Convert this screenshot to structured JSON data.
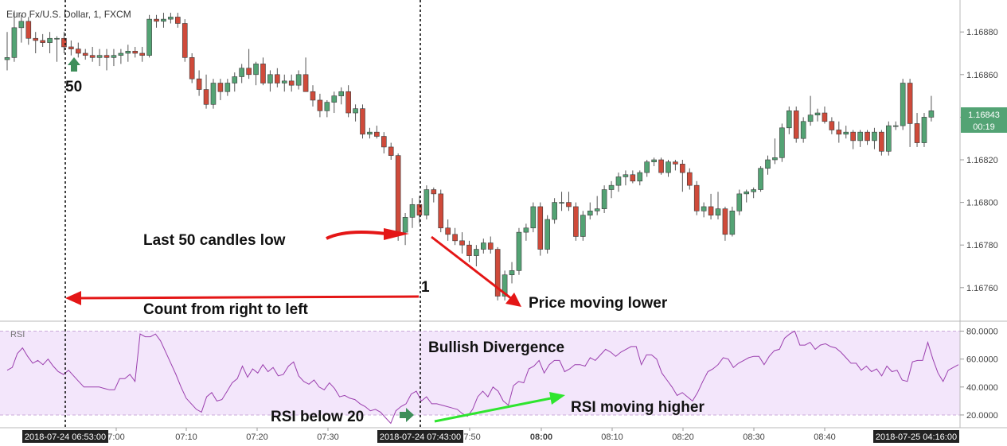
{
  "chart_data": [
    {
      "type": "candlestick",
      "title": "Euro Fx/U.S. Dollar, 1, FXCM",
      "ylim": [
        1.16745,
        1.16895
      ],
      "y_ticks": [
        "1.16880",
        "1.16860",
        "1.16840",
        "1.16820",
        "1.16800",
        "1.16780",
        "1.16760"
      ],
      "last_price": "1.16843",
      "countdown": "00:19",
      "colors": {
        "up": "#53a374",
        "down": "#cf4a3a",
        "wick": "#555555"
      },
      "candles": [
        {
          "o": 1.16867,
          "h": 1.1688,
          "l": 1.16862,
          "c": 1.16868
        },
        {
          "o": 1.16868,
          "h": 1.1689,
          "l": 1.16866,
          "c": 1.16882
        },
        {
          "o": 1.16882,
          "h": 1.16888,
          "l": 1.16875,
          "c": 1.16885
        },
        {
          "o": 1.16885,
          "h": 1.16887,
          "l": 1.16874,
          "c": 1.16877
        },
        {
          "o": 1.16877,
          "h": 1.1688,
          "l": 1.1687,
          "c": 1.16876
        },
        {
          "o": 1.16876,
          "h": 1.16879,
          "l": 1.16873,
          "c": 1.16875
        },
        {
          "o": 1.16875,
          "h": 1.1688,
          "l": 1.1687,
          "c": 1.16877
        },
        {
          "o": 1.16877,
          "h": 1.16878,
          "l": 1.16866,
          "c": 1.16877
        },
        {
          "o": 1.16877,
          "h": 1.1688,
          "l": 1.1687,
          "c": 1.16873
        },
        {
          "o": 1.16873,
          "h": 1.16876,
          "l": 1.16869,
          "c": 1.16872
        },
        {
          "o": 1.16872,
          "h": 1.16875,
          "l": 1.16868,
          "c": 1.1687
        },
        {
          "o": 1.1687,
          "h": 1.16872,
          "l": 1.16867,
          "c": 1.16869
        },
        {
          "o": 1.16869,
          "h": 1.16873,
          "l": 1.16866,
          "c": 1.16868
        },
        {
          "o": 1.16868,
          "h": 1.16872,
          "l": 1.16864,
          "c": 1.16869
        },
        {
          "o": 1.16869,
          "h": 1.16872,
          "l": 1.16862,
          "c": 1.16868
        },
        {
          "o": 1.16868,
          "h": 1.16872,
          "l": 1.16864,
          "c": 1.16869
        },
        {
          "o": 1.16869,
          "h": 1.16872,
          "l": 1.16865,
          "c": 1.1687
        },
        {
          "o": 1.1687,
          "h": 1.16874,
          "l": 1.16866,
          "c": 1.16871
        },
        {
          "o": 1.16871,
          "h": 1.16873,
          "l": 1.16868,
          "c": 1.1687
        },
        {
          "o": 1.1687,
          "h": 1.16873,
          "l": 1.16866,
          "c": 1.16869
        },
        {
          "o": 1.16869,
          "h": 1.16888,
          "l": 1.16868,
          "c": 1.16886
        },
        {
          "o": 1.16886,
          "h": 1.16888,
          "l": 1.16882,
          "c": 1.16885
        },
        {
          "o": 1.16885,
          "h": 1.16889,
          "l": 1.16882,
          "c": 1.16886
        },
        {
          "o": 1.16886,
          "h": 1.16889,
          "l": 1.16884,
          "c": 1.16887
        },
        {
          "o": 1.16887,
          "h": 1.16889,
          "l": 1.16882,
          "c": 1.16884
        },
        {
          "o": 1.16884,
          "h": 1.16886,
          "l": 1.16866,
          "c": 1.16868
        },
        {
          "o": 1.16868,
          "h": 1.1687,
          "l": 1.16856,
          "c": 1.16858
        },
        {
          "o": 1.16858,
          "h": 1.16862,
          "l": 1.1685,
          "c": 1.16853
        },
        {
          "o": 1.16853,
          "h": 1.1686,
          "l": 1.16844,
          "c": 1.16846
        },
        {
          "o": 1.16846,
          "h": 1.16858,
          "l": 1.16844,
          "c": 1.16856
        },
        {
          "o": 1.16856,
          "h": 1.16858,
          "l": 1.16848,
          "c": 1.16852
        },
        {
          "o": 1.16852,
          "h": 1.16858,
          "l": 1.1685,
          "c": 1.16856
        },
        {
          "o": 1.16856,
          "h": 1.16861,
          "l": 1.16852,
          "c": 1.16859
        },
        {
          "o": 1.16859,
          "h": 1.16865,
          "l": 1.16856,
          "c": 1.16863
        },
        {
          "o": 1.16863,
          "h": 1.16872,
          "l": 1.16858,
          "c": 1.1686
        },
        {
          "o": 1.1686,
          "h": 1.16866,
          "l": 1.16855,
          "c": 1.16865
        },
        {
          "o": 1.16865,
          "h": 1.16868,
          "l": 1.16855,
          "c": 1.16856
        },
        {
          "o": 1.16856,
          "h": 1.16862,
          "l": 1.16852,
          "c": 1.1686
        },
        {
          "o": 1.1686,
          "h": 1.16863,
          "l": 1.16854,
          "c": 1.16856
        },
        {
          "o": 1.16856,
          "h": 1.1686,
          "l": 1.16852,
          "c": 1.16857
        },
        {
          "o": 1.16857,
          "h": 1.1686,
          "l": 1.16852,
          "c": 1.16855
        },
        {
          "o": 1.16855,
          "h": 1.16862,
          "l": 1.16853,
          "c": 1.1686
        },
        {
          "o": 1.1686,
          "h": 1.16868,
          "l": 1.16852,
          "c": 1.16852
        },
        {
          "o": 1.16852,
          "h": 1.16855,
          "l": 1.16845,
          "c": 1.16848
        },
        {
          "o": 1.16848,
          "h": 1.16851,
          "l": 1.1684,
          "c": 1.16843
        },
        {
          "o": 1.16843,
          "h": 1.16848,
          "l": 1.1684,
          "c": 1.16847
        },
        {
          "o": 1.16847,
          "h": 1.16852,
          "l": 1.16842,
          "c": 1.1685
        },
        {
          "o": 1.1685,
          "h": 1.16854,
          "l": 1.16846,
          "c": 1.16852
        },
        {
          "o": 1.16852,
          "h": 1.16855,
          "l": 1.1684,
          "c": 1.16842
        },
        {
          "o": 1.16842,
          "h": 1.16846,
          "l": 1.16838,
          "c": 1.16844
        },
        {
          "o": 1.16844,
          "h": 1.16846,
          "l": 1.1683,
          "c": 1.16832
        },
        {
          "o": 1.16832,
          "h": 1.16835,
          "l": 1.1683,
          "c": 1.16833
        },
        {
          "o": 1.16833,
          "h": 1.16836,
          "l": 1.1683,
          "c": 1.16831
        },
        {
          "o": 1.16831,
          "h": 1.16833,
          "l": 1.16823,
          "c": 1.16826
        },
        {
          "o": 1.16826,
          "h": 1.16828,
          "l": 1.1682,
          "c": 1.16822
        },
        {
          "o": 1.16822,
          "h": 1.16823,
          "l": 1.16782,
          "c": 1.16786
        },
        {
          "o": 1.16786,
          "h": 1.16795,
          "l": 1.1678,
          "c": 1.16793
        },
        {
          "o": 1.16793,
          "h": 1.16802,
          "l": 1.16788,
          "c": 1.16799
        },
        {
          "o": 1.16799,
          "h": 1.16803,
          "l": 1.1679,
          "c": 1.16794
        },
        {
          "o": 1.16794,
          "h": 1.16808,
          "l": 1.16792,
          "c": 1.16806
        },
        {
          "o": 1.16806,
          "h": 1.16807,
          "l": 1.168,
          "c": 1.16804
        },
        {
          "o": 1.16804,
          "h": 1.16806,
          "l": 1.16786,
          "c": 1.16788
        },
        {
          "o": 1.16788,
          "h": 1.16792,
          "l": 1.16782,
          "c": 1.16785
        },
        {
          "o": 1.16785,
          "h": 1.16788,
          "l": 1.1678,
          "c": 1.16782
        },
        {
          "o": 1.16782,
          "h": 1.16786,
          "l": 1.16776,
          "c": 1.1678
        },
        {
          "o": 1.1678,
          "h": 1.16782,
          "l": 1.16772,
          "c": 1.16775
        },
        {
          "o": 1.16775,
          "h": 1.1678,
          "l": 1.1677,
          "c": 1.16778
        },
        {
          "o": 1.16778,
          "h": 1.16783,
          "l": 1.16776,
          "c": 1.16781
        },
        {
          "o": 1.16781,
          "h": 1.16784,
          "l": 1.16776,
          "c": 1.16778
        },
        {
          "o": 1.16778,
          "h": 1.16779,
          "l": 1.16754,
          "c": 1.16756
        },
        {
          "o": 1.16756,
          "h": 1.16768,
          "l": 1.16754,
          "c": 1.16766
        },
        {
          "o": 1.16766,
          "h": 1.16772,
          "l": 1.16762,
          "c": 1.16768
        },
        {
          "o": 1.16768,
          "h": 1.16788,
          "l": 1.16766,
          "c": 1.16786
        },
        {
          "o": 1.16786,
          "h": 1.1679,
          "l": 1.16782,
          "c": 1.16788
        },
        {
          "o": 1.16788,
          "h": 1.168,
          "l": 1.16786,
          "c": 1.16798
        },
        {
          "o": 1.16798,
          "h": 1.168,
          "l": 1.16775,
          "c": 1.16778
        },
        {
          "o": 1.16778,
          "h": 1.16794,
          "l": 1.16776,
          "c": 1.16792
        },
        {
          "o": 1.16792,
          "h": 1.16802,
          "l": 1.1679,
          "c": 1.168
        },
        {
          "o": 1.168,
          "h": 1.16805,
          "l": 1.16796,
          "c": 1.168
        },
        {
          "o": 1.168,
          "h": 1.16805,
          "l": 1.16796,
          "c": 1.16798
        },
        {
          "o": 1.16798,
          "h": 1.168,
          "l": 1.16782,
          "c": 1.16784
        },
        {
          "o": 1.16784,
          "h": 1.16796,
          "l": 1.16782,
          "c": 1.16794
        },
        {
          "o": 1.16794,
          "h": 1.168,
          "l": 1.16792,
          "c": 1.16796
        },
        {
          "o": 1.16796,
          "h": 1.16803,
          "l": 1.16794,
          "c": 1.16797
        },
        {
          "o": 1.16797,
          "h": 1.16808,
          "l": 1.16795,
          "c": 1.16806
        },
        {
          "o": 1.16806,
          "h": 1.1681,
          "l": 1.16802,
          "c": 1.16808
        },
        {
          "o": 1.16808,
          "h": 1.16814,
          "l": 1.16805,
          "c": 1.16812
        },
        {
          "o": 1.16812,
          "h": 1.16815,
          "l": 1.16808,
          "c": 1.16813
        },
        {
          "o": 1.16813,
          "h": 1.16815,
          "l": 1.16809,
          "c": 1.1681
        },
        {
          "o": 1.1681,
          "h": 1.16815,
          "l": 1.16808,
          "c": 1.16814
        },
        {
          "o": 1.16814,
          "h": 1.1682,
          "l": 1.16812,
          "c": 1.16819
        },
        {
          "o": 1.16819,
          "h": 1.16821,
          "l": 1.16817,
          "c": 1.1682
        },
        {
          "o": 1.1682,
          "h": 1.16821,
          "l": 1.16813,
          "c": 1.16814
        },
        {
          "o": 1.16814,
          "h": 1.1682,
          "l": 1.16812,
          "c": 1.16819
        },
        {
          "o": 1.16819,
          "h": 1.1682,
          "l": 1.16815,
          "c": 1.16818
        },
        {
          "o": 1.16818,
          "h": 1.1682,
          "l": 1.16805,
          "c": 1.16814
        },
        {
          "o": 1.16814,
          "h": 1.16816,
          "l": 1.16806,
          "c": 1.16808
        },
        {
          "o": 1.16808,
          "h": 1.1681,
          "l": 1.16794,
          "c": 1.16796
        },
        {
          "o": 1.16796,
          "h": 1.168,
          "l": 1.16793,
          "c": 1.16798
        },
        {
          "o": 1.16798,
          "h": 1.16804,
          "l": 1.16792,
          "c": 1.16794
        },
        {
          "o": 1.16794,
          "h": 1.16805,
          "l": 1.16792,
          "c": 1.16797
        },
        {
          "o": 1.16797,
          "h": 1.16798,
          "l": 1.16782,
          "c": 1.16785
        },
        {
          "o": 1.16785,
          "h": 1.16798,
          "l": 1.16784,
          "c": 1.16796
        },
        {
          "o": 1.16796,
          "h": 1.16806,
          "l": 1.16794,
          "c": 1.16804
        },
        {
          "o": 1.16804,
          "h": 1.16806,
          "l": 1.168,
          "c": 1.16805
        },
        {
          "o": 1.16805,
          "h": 1.16807,
          "l": 1.16802,
          "c": 1.16806
        },
        {
          "o": 1.16806,
          "h": 1.16817,
          "l": 1.16805,
          "c": 1.16816
        },
        {
          "o": 1.16816,
          "h": 1.16822,
          "l": 1.16813,
          "c": 1.1682
        },
        {
          "o": 1.1682,
          "h": 1.1683,
          "l": 1.16818,
          "c": 1.16821
        },
        {
          "o": 1.16821,
          "h": 1.16837,
          "l": 1.16819,
          "c": 1.16835
        },
        {
          "o": 1.16835,
          "h": 1.16845,
          "l": 1.16832,
          "c": 1.16843
        },
        {
          "o": 1.16843,
          "h": 1.16845,
          "l": 1.16828,
          "c": 1.1683
        },
        {
          "o": 1.1683,
          "h": 1.1684,
          "l": 1.16828,
          "c": 1.16838
        },
        {
          "o": 1.16838,
          "h": 1.1685,
          "l": 1.16836,
          "c": 1.16841
        },
        {
          "o": 1.16841,
          "h": 1.16844,
          "l": 1.16838,
          "c": 1.16842
        },
        {
          "o": 1.16842,
          "h": 1.16845,
          "l": 1.16837,
          "c": 1.16838
        },
        {
          "o": 1.16838,
          "h": 1.1684,
          "l": 1.16832,
          "c": 1.16834
        },
        {
          "o": 1.16834,
          "h": 1.16838,
          "l": 1.16828,
          "c": 1.16832
        },
        {
          "o": 1.16832,
          "h": 1.16836,
          "l": 1.1683,
          "c": 1.16833
        },
        {
          "o": 1.16833,
          "h": 1.16834,
          "l": 1.16825,
          "c": 1.16829
        },
        {
          "o": 1.16829,
          "h": 1.16834,
          "l": 1.16826,
          "c": 1.16833
        },
        {
          "o": 1.16833,
          "h": 1.16834,
          "l": 1.16827,
          "c": 1.16829
        },
        {
          "o": 1.16829,
          "h": 1.16835,
          "l": 1.16825,
          "c": 1.16833
        },
        {
          "o": 1.16833,
          "h": 1.16834,
          "l": 1.16822,
          "c": 1.16824
        },
        {
          "o": 1.16824,
          "h": 1.16838,
          "l": 1.16822,
          "c": 1.16836
        },
        {
          "o": 1.16836,
          "h": 1.16838,
          "l": 1.16834,
          "c": 1.16836
        },
        {
          "o": 1.16836,
          "h": 1.16858,
          "l": 1.16834,
          "c": 1.16856
        },
        {
          "o": 1.16856,
          "h": 1.16858,
          "l": 1.16826,
          "c": 1.16837
        },
        {
          "o": 1.16837,
          "h": 1.16842,
          "l": 1.16826,
          "c": 1.16828
        },
        {
          "o": 1.16828,
          "h": 1.16842,
          "l": 1.16826,
          "c": 1.1684
        },
        {
          "o": 1.1684,
          "h": 1.1685,
          "l": 1.16838,
          "c": 1.16843
        }
      ]
    },
    {
      "type": "line",
      "title": "RSI",
      "ylim": [
        12,
        86
      ],
      "y_ticks": [
        "80.0000",
        "60.0000",
        "40.0000",
        "20.0000"
      ],
      "bands": [
        20,
        80
      ],
      "colors": {
        "line": "#9b3fae",
        "band_fill": "#f3e6fb",
        "band_line": "#c9a9d8"
      },
      "values": [
        52,
        54,
        64,
        68,
        62,
        57,
        59,
        56,
        60,
        55,
        51,
        49,
        52,
        48,
        44,
        40,
        40,
        40,
        40,
        39,
        38,
        38,
        46,
        46,
        49,
        44,
        78,
        76,
        76,
        78,
        73,
        65,
        57,
        49,
        40,
        32,
        28,
        24,
        22,
        33,
        36,
        30,
        31,
        37,
        43,
        46,
        55,
        47,
        53,
        50,
        56,
        51,
        54,
        48,
        49,
        55,
        58,
        48,
        44,
        42,
        45,
        40,
        38,
        43,
        39,
        33,
        34,
        32,
        31,
        28,
        26,
        23,
        24,
        22,
        18,
        14,
        23,
        26,
        28,
        35,
        37,
        30,
        33,
        28,
        28,
        27,
        26,
        25,
        24,
        21,
        19,
        24,
        33,
        37,
        33,
        40,
        37,
        30,
        27,
        41,
        44,
        43,
        53,
        55,
        59,
        50,
        56,
        59,
        59,
        51,
        53,
        56,
        56,
        55,
        61,
        59,
        63,
        67,
        65,
        62,
        65,
        67,
        69,
        69,
        56,
        63,
        63,
        60,
        50,
        45,
        40,
        34,
        36,
        33,
        30,
        36,
        44,
        51,
        53,
        56,
        61,
        60,
        54,
        57,
        59,
        61,
        62,
        62,
        56,
        62,
        66,
        67,
        75,
        78,
        80,
        70,
        70,
        72,
        67,
        70,
        71,
        69,
        68,
        65,
        61,
        57,
        57,
        52,
        55,
        51,
        53,
        48,
        55,
        51,
        52,
        45,
        44,
        58,
        59,
        59,
        72,
        60,
        50,
        44,
        52,
        54,
        56
      ]
    }
  ],
  "x_axis": {
    "ticks": [
      "7:00",
      "07:10",
      "07:20",
      "07:30",
      "07:50",
      "08:00",
      "08:10",
      "08:20",
      "08:30",
      "08:40"
    ],
    "markers": [
      "2018-07-24 06:53:00",
      "2018-07-24 07:43:00",
      "2018-07-25 04:16:00"
    ]
  },
  "annotations": {
    "count_start": "50",
    "count_end": "1",
    "last_50_low": "Last 50 candles low",
    "count_direction": "Count from right to left",
    "price_lower": "Price moving lower",
    "bullish_divergence": "Bullish Divergence",
    "rsi_below_20": "RSI below 20",
    "rsi_higher": "RSI moving higher"
  }
}
